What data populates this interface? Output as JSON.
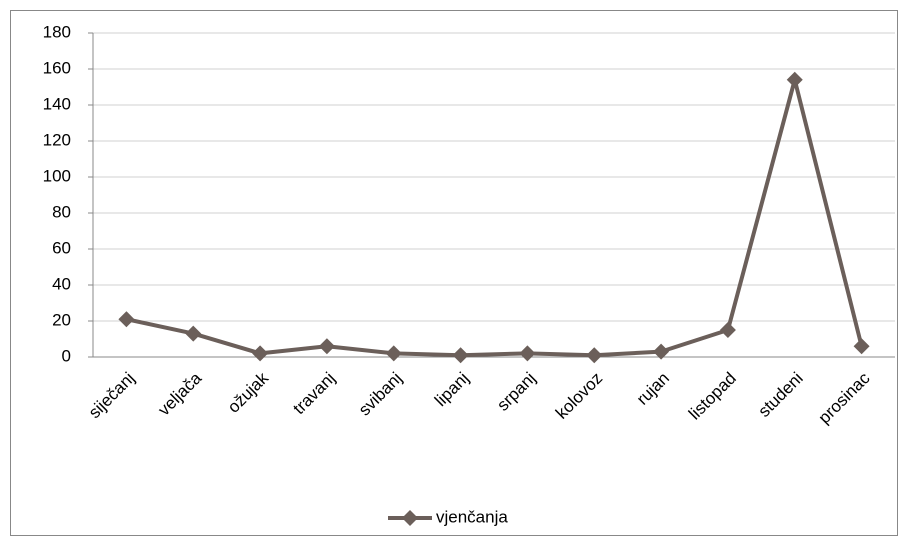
{
  "chart_data": {
    "type": "line",
    "categories": [
      "siječanj",
      "veljača",
      "ožujak",
      "travanj",
      "svibanj",
      "lipanj",
      "srpanj",
      "kolovoz",
      "rujan",
      "listopad",
      "studeni",
      "prosinac"
    ],
    "series": [
      {
        "name": "vjenčanja",
        "color": "#6b5f5a",
        "values": [
          21,
          13,
          2,
          6,
          2,
          1,
          2,
          1,
          3,
          15,
          154,
          6
        ]
      }
    ],
    "ylim": [
      0,
      180
    ],
    "yticks": [
      0,
      20,
      40,
      60,
      80,
      100,
      120,
      140,
      160,
      180
    ],
    "grid": true,
    "legend": "bottom"
  }
}
